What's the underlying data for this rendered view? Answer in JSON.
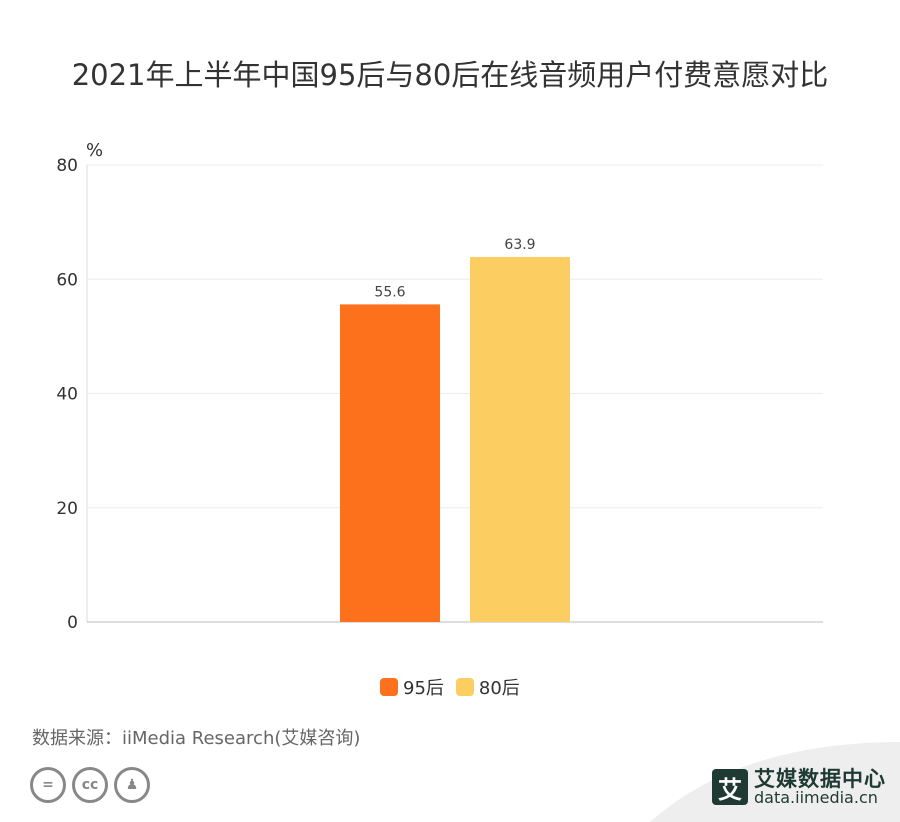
{
  "title": "2021年上半年中国95后与80后在线音频用户付费意愿对比",
  "chart_data": {
    "type": "bar",
    "categories": [
      ""
    ],
    "series": [
      {
        "name": "95后",
        "values": [
          55.6
        ],
        "color": "#fd711d"
      },
      {
        "name": "80后",
        "values": [
          63.9
        ],
        "color": "#fccd61"
      }
    ],
    "ylabel": "%",
    "ylim": [
      0,
      80
    ],
    "yticks": [
      0,
      20,
      40,
      60,
      80
    ],
    "data_labels": [
      "55.6",
      "63.9"
    ],
    "grid": true,
    "legend": "bottom-center"
  },
  "source": "数据来源：iiMedia Research(艾媒咨询)",
  "license_icons": [
    "equals-icon",
    "cc-icon",
    "person-icon"
  ],
  "license_glyphs": [
    "=",
    "cc",
    "♟"
  ],
  "brand": {
    "logo": "艾",
    "name": "艾媒数据中心",
    "url": "data.iimedia.cn"
  }
}
